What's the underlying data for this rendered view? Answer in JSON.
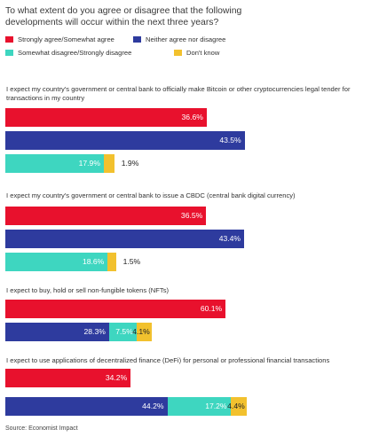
{
  "chart_data": {
    "type": "bar",
    "title": "To what extent do you agree or disagree that the following developments will occur within the next three years?",
    "legend": [
      {
        "name": "Strongly agree/Somewhat agree",
        "color": "#e8112d"
      },
      {
        "name": "Neither agree nor disagree",
        "color": "#2e3b9e"
      },
      {
        "name": "Somewhat disagree/Strongly disagree",
        "color": "#3ed6c0"
      },
      {
        "name": "Don't know",
        "color": "#f2c12e"
      }
    ],
    "questions": [
      {
        "text": "I expect my country's government or central bank to officially make Bitcoin or other cryptocurrencies legal tender for transactions in my country",
        "layout": "separate",
        "values": {
          "agree": 36.6,
          "neither": 43.5,
          "disagree": 17.9,
          "dont_know": 1.9
        },
        "labels": {
          "agree": "36.6%",
          "neither": "43.5%",
          "disagree": "17.9%",
          "dont_know": "1.9%"
        }
      },
      {
        "text": "I expect my country's government or central bank to issue a CBDC (central bank digital currency)",
        "layout": "separate",
        "values": {
          "agree": 36.5,
          "neither": 43.4,
          "disagree": 18.6,
          "dont_know": 1.5
        },
        "labels": {
          "agree": "36.5%",
          "neither": "43.4%",
          "disagree": "18.6%",
          "dont_know": "1.5%"
        }
      },
      {
        "text": "I expect to buy, hold or sell non-fungible tokens (NFTs)",
        "layout": "split",
        "values": {
          "agree": 60.1,
          "neither": 28.3,
          "disagree": 7.5,
          "dont_know": 4.1
        },
        "labels": {
          "agree": "60.1%",
          "neither": "28.3%",
          "disagree": "7.5%",
          "dont_know": "4.1%"
        }
      },
      {
        "text": "I expect to use applications of decentralized finance (DeFi) for personal or professional financial transactions",
        "layout": "split",
        "values": {
          "agree": 34.2,
          "neither": 44.2,
          "disagree": 17.2,
          "dont_know": 4.4
        },
        "labels": {
          "agree": "34.2%",
          "neither": "44.2%",
          "disagree": "17.2%",
          "dont_know": "4.4%"
        }
      }
    ],
    "source": "Source: Economist Impact"
  }
}
